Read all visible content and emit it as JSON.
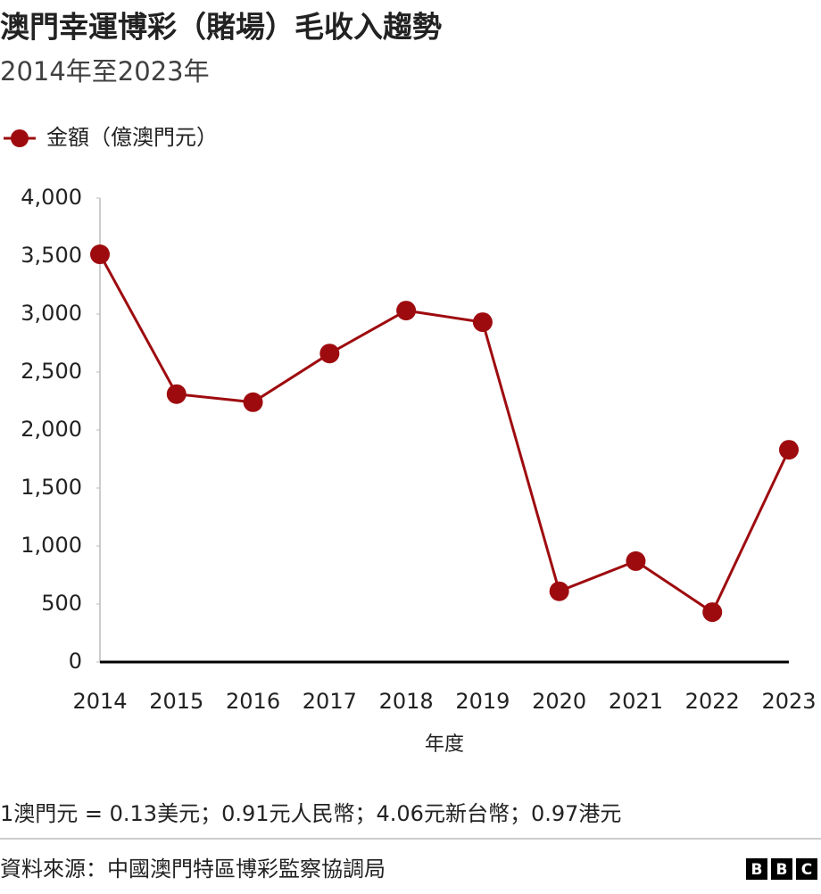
{
  "chart_data": {
    "type": "line",
    "title": "澳門幸運博彩（賭場）毛收入趨勢",
    "subtitle": "2014年至2023年",
    "categories": [
      "2014",
      "2015",
      "2016",
      "2017",
      "2018",
      "2019",
      "2020",
      "2021",
      "2022",
      "2023"
    ],
    "series": [
      {
        "name": "金額（億澳門元）",
        "color": "#9e0b0f",
        "values": [
          3515,
          2310,
          2240,
          2660,
          3030,
          2930,
          610,
          870,
          430,
          1830
        ]
      }
    ],
    "xlabel": "年度",
    "ylim": [
      0,
      4000
    ],
    "yticks": [
      0,
      500,
      {
        "value": 1000,
        "label": "1,000"
      },
      {
        "value": 1500,
        "label": "1,500"
      },
      {
        "value": 2000,
        "label": "2,000"
      },
      {
        "value": 2500,
        "label": "2,500"
      },
      {
        "value": 3000,
        "label": "3,000"
      },
      {
        "value": 3500,
        "label": "3,500"
      },
      {
        "value": 4000,
        "label": "4,000"
      }
    ],
    "grid": false,
    "legend": "top-left",
    "note": "1澳門元 = 0.13美元；0.91元人民幣；4.06元新台幣；0.97港元",
    "source": "資料來源：中國澳門特區博彩監察協調局",
    "logo": [
      "B",
      "B",
      "C"
    ]
  }
}
